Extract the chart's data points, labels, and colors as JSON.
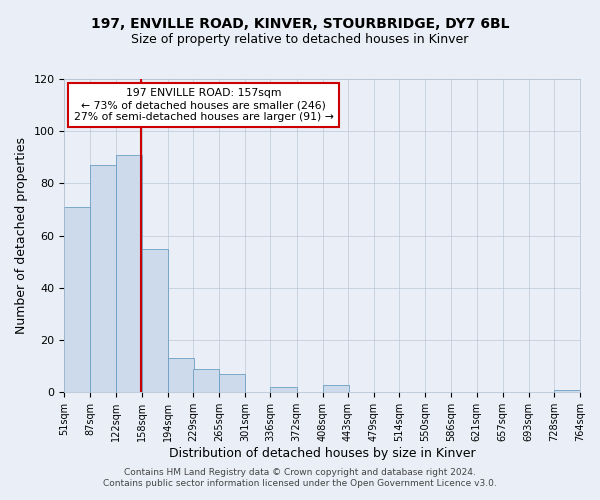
{
  "title": "197, ENVILLE ROAD, KINVER, STOURBRIDGE, DY7 6BL",
  "subtitle": "Size of property relative to detached houses in Kinver",
  "xlabel": "Distribution of detached houses by size in Kinver",
  "ylabel": "Number of detached properties",
  "bar_left_edges": [
    51,
    87,
    122,
    158,
    194,
    229,
    265,
    301,
    336,
    372,
    408,
    443,
    479,
    514,
    550,
    586,
    621,
    657,
    693,
    728
  ],
  "bar_heights": [
    71,
    87,
    91,
    55,
    13,
    9,
    7,
    0,
    2,
    0,
    3,
    0,
    0,
    0,
    0,
    0,
    0,
    0,
    0,
    1
  ],
  "bin_width": 36,
  "tick_labels": [
    "51sqm",
    "87sqm",
    "122sqm",
    "158sqm",
    "194sqm",
    "229sqm",
    "265sqm",
    "301sqm",
    "336sqm",
    "372sqm",
    "408sqm",
    "443sqm",
    "479sqm",
    "514sqm",
    "550sqm",
    "586sqm",
    "621sqm",
    "657sqm",
    "693sqm",
    "728sqm",
    "764sqm"
  ],
  "ylim": [
    0,
    120
  ],
  "yticks": [
    0,
    20,
    40,
    60,
    80,
    100,
    120
  ],
  "bar_color": "#cddaeb",
  "bar_edge_color": "#6b9ec4",
  "vline_x": 157,
  "vline_color": "#cc0000",
  "annotation_line1": "197 ENVILLE ROAD: 157sqm",
  "annotation_line2": "← 73% of detached houses are smaller (246)",
  "annotation_line3": "27% of semi-detached houses are larger (91) →",
  "annotation_box_color": "#ffffff",
  "annotation_box_edge": "#cc0000",
  "footer_line1": "Contains HM Land Registry data © Crown copyright and database right 2024.",
  "footer_line2": "Contains public sector information licensed under the Open Government Licence v3.0.",
  "background_color": "#eaeff7",
  "plot_bg_color": "#eaeff7",
  "grid_color": "#b0bfcf",
  "title_fontsize": 10,
  "subtitle_fontsize": 9,
  "xlabel_fontsize": 9,
  "ylabel_fontsize": 9,
  "tick_fontsize": 7,
  "ytick_fontsize": 8,
  "footer_fontsize": 6.5
}
